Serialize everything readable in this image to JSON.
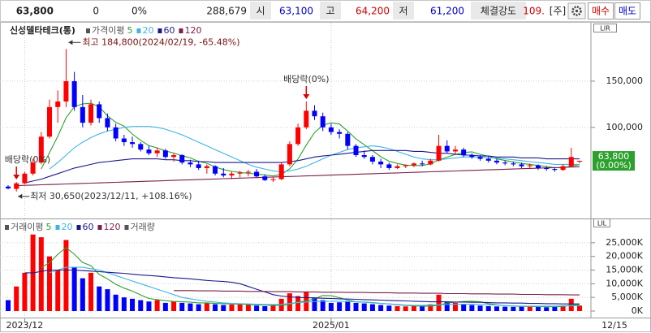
{
  "header": {
    "price": "63,800",
    "change": "0",
    "change_pct": "0%",
    "volume": "288,679",
    "open_label": "시",
    "open": "63,100",
    "high_label": "고",
    "high": "64,200",
    "low_label": "저",
    "low": "61,200",
    "strength_label": "체결강도",
    "strength": "109.",
    "market": "[주]",
    "buy": "매수",
    "sell": "매도"
  },
  "chart_data": [
    {
      "type": "candlestick",
      "title": "신성델타테크(통)",
      "legend_title": "가격이평",
      "scale_mode": "LIR",
      "up_color": "#ff0000",
      "down_color": "#0000ff",
      "open": [
        36000,
        33500,
        39500,
        50000,
        62000,
        90000,
        122000,
        128000,
        150000,
        122000,
        105000,
        125000,
        110000,
        100000,
        88000,
        84000,
        82000,
        76000,
        72000,
        75000,
        68000,
        70000,
        62000,
        60000,
        56000,
        58000,
        50000,
        48000,
        50000,
        51000,
        52000,
        47000,
        43000,
        44000,
        60000,
        82000,
        100000,
        118000,
        112000,
        100000,
        95000,
        93000,
        80000,
        70000,
        68000,
        63000,
        60000,
        56000,
        58000,
        59000,
        61000,
        60000,
        64000,
        80000,
        74000,
        76000,
        70000,
        68000,
        66000,
        64000,
        62000,
        61000,
        60000,
        58000,
        59000,
        56000,
        55000,
        54000,
        58000,
        63100
      ],
      "high": [
        37500,
        41000,
        52000,
        66000,
        95000,
        130000,
        140000,
        184800,
        160000,
        135000,
        130000,
        128000,
        115000,
        104000,
        92000,
        90000,
        84000,
        80000,
        78000,
        77000,
        72000,
        71000,
        65000,
        64000,
        60000,
        59000,
        56000,
        52000,
        53000,
        54000,
        55000,
        49000,
        46000,
        62000,
        85000,
        104000,
        128000,
        124000,
        116000,
        104000,
        98000,
        95000,
        82000,
        75000,
        70000,
        66000,
        62000,
        60000,
        60000,
        62000,
        64000,
        66000,
        92000,
        86000,
        80000,
        78000,
        72000,
        70000,
        68000,
        66000,
        64000,
        63000,
        62000,
        61000,
        60000,
        58000,
        57000,
        60000,
        78000,
        64200
      ],
      "low": [
        33000,
        30650,
        38500,
        48000,
        60000,
        88000,
        105000,
        122000,
        118000,
        100000,
        102000,
        105000,
        96000,
        85000,
        80000,
        78000,
        74000,
        70000,
        68000,
        66000,
        63000,
        60000,
        57000,
        54000,
        50000,
        48000,
        46000,
        44000,
        46000,
        47000,
        46000,
        42000,
        41000,
        43000,
        58000,
        80000,
        98000,
        108000,
        96000,
        92000,
        88000,
        76000,
        68000,
        66000,
        60000,
        56000,
        54000,
        55000,
        56000,
        57000,
        58000,
        59000,
        63000,
        72000,
        70000,
        68000,
        66000,
        64000,
        62000,
        60000,
        59000,
        58000,
        56000,
        55000,
        54000,
        53000,
        52000,
        53000,
        57000,
        61200
      ],
      "close": [
        34000,
        39500,
        50000,
        62000,
        90000,
        122000,
        128000,
        150000,
        122000,
        105000,
        125000,
        110000,
        100000,
        88000,
        84000,
        82000,
        76000,
        72000,
        75000,
        68000,
        70000,
        62000,
        60000,
        56000,
        58000,
        50000,
        48000,
        50000,
        51000,
        52000,
        47000,
        43000,
        44000,
        60000,
        82000,
        100000,
        118000,
        112000,
        100000,
        95000,
        93000,
        80000,
        70000,
        68000,
        63000,
        60000,
        56000,
        58000,
        59000,
        61000,
        60000,
        64000,
        80000,
        74000,
        76000,
        70000,
        68000,
        66000,
        64000,
        62000,
        61000,
        60000,
        58000,
        59000,
        56000,
        55000,
        54000,
        58000,
        68000,
        63800
      ],
      "series": [
        {
          "name": "5",
          "color": "#2ca02c",
          "values": [
            null,
            null,
            null,
            null,
            55100,
            72700,
            90400,
            110400,
            122400,
            125400,
            126000,
            122400,
            112400,
            105600,
            101400,
            92800,
            86000,
            80400,
            77800,
            74600,
            72200,
            69400,
            67000,
            63200,
            61200,
            57200,
            54400,
            52400,
            51400,
            50200,
            49600,
            48600,
            47400,
            49200,
            55200,
            65800,
            80800,
            94400,
            102400,
            105000,
            103600,
            96000,
            87600,
            81200,
            74800,
            68200,
            63400,
            61000,
            59200,
            58800,
            58800,
            60400,
            64800,
            67800,
            70800,
            72800,
            73600,
            70800,
            68800,
            66000,
            64200,
            62600,
            61000,
            60000,
            58800,
            57600,
            56400,
            56400,
            58200,
            59760
          ]
        },
        {
          "name": "20",
          "color": "#3fb4e6",
          "values": [
            null,
            null,
            null,
            null,
            null,
            55000,
            62000,
            70000,
            78000,
            84000,
            89000,
            93000,
            96000,
            98000,
            100000,
            101000,
            101000,
            101000,
            100000,
            98000,
            95000,
            92000,
            88000,
            84000,
            80000,
            76000,
            72000,
            68000,
            64000,
            60000,
            57000,
            55000,
            53000,
            52000,
            53000,
            55000,
            58000,
            62000,
            66000,
            70000,
            73000,
            76000,
            78000,
            79000,
            80000,
            79000,
            77000,
            74000,
            71000,
            68000,
            66000,
            65000,
            65000,
            66000,
            67000,
            68000,
            68000,
            68000,
            67000,
            67000,
            66000,
            65000,
            64000,
            63000,
            62000,
            61000,
            60000,
            60000,
            60000,
            60000
          ]
        },
        {
          "name": "60",
          "color": "#1a1a8c",
          "values": [
            null,
            null,
            40000,
            42000,
            44000,
            47000,
            50000,
            53000,
            56000,
            58000,
            60000,
            62000,
            63000,
            64000,
            65000,
            66000,
            66000,
            66000,
            66000,
            65000,
            65000,
            64000,
            64000,
            63000,
            63000,
            62000,
            62000,
            62000,
            62000,
            62000,
            62000,
            62000,
            62000,
            62000,
            63000,
            64000,
            66000,
            68000,
            69000,
            70000,
            71000,
            72000,
            73000,
            74000,
            75000,
            75000,
            75000,
            75000,
            75000,
            74000,
            74000,
            73000,
            72000,
            72000,
            71000,
            70000,
            70000,
            69000,
            69000,
            68000,
            68000,
            68000,
            67000,
            67000,
            67000,
            66000,
            66000,
            66000,
            66000,
            66000
          ]
        },
        {
          "name": "120",
          "color": "#7a1f4a",
          "values": [
            null,
            37000,
            37300,
            37600,
            37900,
            38200,
            38500,
            38800,
            39100,
            39400,
            39700,
            40000,
            40300,
            40600,
            40900,
            41200,
            41500,
            41800,
            42100,
            42400,
            42700,
            43000,
            43300,
            43600,
            43900,
            44200,
            44500,
            44800,
            45100,
            45400,
            45700,
            46000,
            46300,
            46600,
            46900,
            47200,
            47500,
            47800,
            48100,
            48400,
            48700,
            49000,
            49300,
            49600,
            49900,
            50200,
            50500,
            50800,
            51100,
            51400,
            51700,
            52000,
            52300,
            52600,
            52900,
            53200,
            53500,
            53800,
            54100,
            54400,
            54700,
            55000,
            55300,
            55600,
            55900,
            56200,
            56500,
            56800,
            57100,
            57400
          ]
        }
      ],
      "ylim": [
        5000,
        200000
      ],
      "yticks": [
        {
          "value": 100000,
          "label": "100,000"
        },
        {
          "value": 150000,
          "label": "150,000"
        }
      ],
      "grid": true,
      "annotations": [
        {
          "text": "최고 184,800(2024/02/19, -65.48%)",
          "index": 7,
          "kind": "max"
        },
        {
          "text": "최저 30,650(2023/12/11, +108.16%)",
          "index": 1,
          "kind": "min"
        },
        {
          "text": "배당락(0%)",
          "index": 1,
          "kind": "event"
        },
        {
          "text": "배당락(0%)",
          "index": 36,
          "kind": "event"
        }
      ],
      "last": {
        "value": 63800,
        "label": "63,800",
        "change": "(0.00%)",
        "color": "#2ca02c"
      }
    },
    {
      "type": "volume",
      "title": "거래량",
      "legend_title": "거래이평",
      "scale_mode": "LIL",
      "categories": [
        null,
        null,
        "2023/12",
        null,
        null,
        null,
        null,
        null,
        null,
        null,
        null,
        null,
        null,
        null,
        null,
        null,
        null,
        null,
        null,
        null,
        null,
        null,
        null,
        null,
        null,
        null,
        null,
        null,
        null,
        null,
        null,
        null,
        null,
        null,
        null,
        null,
        null,
        null,
        null,
        "2025/01",
        null,
        null,
        null,
        null,
        null,
        null,
        null,
        null,
        null,
        null,
        null,
        null,
        null,
        null,
        null,
        null,
        null,
        null,
        null,
        null,
        null,
        null,
        null,
        null,
        null,
        null,
        null,
        null,
        null,
        null
      ],
      "last_label": "12/15",
      "values": [
        4000,
        9000,
        14000,
        28000,
        27000,
        20000,
        15000,
        26000,
        16000,
        12000,
        14000,
        9000,
        8000,
        6000,
        5000,
        4500,
        4000,
        3500,
        4000,
        3000,
        3500,
        3000,
        2800,
        2500,
        3000,
        2500,
        2200,
        2400,
        2600,
        2300,
        2000,
        1800,
        2000,
        4500,
        6500,
        5500,
        7000,
        5000,
        4000,
        3000,
        3200,
        3500,
        3000,
        2800,
        2500,
        2200,
        2000,
        1800,
        1700,
        1800,
        1900,
        2500,
        6000,
        3500,
        3000,
        2500,
        2200,
        2000,
        1800,
        1700,
        1600,
        1500,
        1700,
        1600,
        1500,
        1400,
        1500,
        2000,
        4500,
        2000
      ],
      "series": [
        {
          "name": "5",
          "color": "#2ca02c",
          "values": [
            null,
            null,
            null,
            null,
            16000,
            17600,
            20800,
            23200,
            20800,
            17800,
            16600,
            13400,
            11800,
            9800,
            8400,
            7300,
            5900,
            4600,
            4200,
            3800,
            3500,
            3400,
            3300,
            3000,
            3000,
            2800,
            2700,
            2600,
            2500,
            2400,
            2300,
            2200,
            2100,
            2100,
            2400,
            3400,
            3700,
            4500,
            5700,
            5600,
            4900,
            4000,
            3400,
            3300,
            3100,
            2800,
            2600,
            2300,
            2100,
            1900,
            1800,
            1800,
            2100,
            3000,
            3200,
            3500,
            3600,
            3400,
            2700,
            2300,
            2000,
            1800,
            1700,
            1700,
            1600,
            1600,
            1600,
            1700,
            2200,
            2300
          ]
        },
        {
          "name": "20",
          "color": "#3fb4e6",
          "values": [
            null,
            null,
            null,
            null,
            null,
            14000,
            15000,
            16000,
            16000,
            16000,
            15500,
            15000,
            14000,
            13000,
            12000,
            11000,
            10000,
            9000,
            8000,
            7000,
            6000,
            5000,
            4500,
            4000,
            3600,
            3300,
            3000,
            2800,
            2700,
            2600,
            2500,
            2400,
            2400,
            2500,
            2800,
            3100,
            3300,
            3500,
            3600,
            3600,
            3600,
            3500,
            3400,
            3200,
            3000,
            2800,
            2600,
            2400,
            2200,
            2100,
            2100,
            2200,
            2300,
            2400,
            2500,
            2500,
            2500,
            2400,
            2300,
            2200,
            2000,
            1900,
            1800,
            1800,
            1800,
            1800,
            1800,
            1900,
            1900,
            2000
          ]
        },
        {
          "name": "60",
          "color": "#1a1a8c",
          "values": [
            null,
            null,
            14000,
            14000,
            14500,
            15000,
            15000,
            15000,
            15000,
            14800,
            14600,
            14400,
            14200,
            14000,
            13800,
            13500,
            13200,
            13000,
            12800,
            12500,
            12200,
            12000,
            11800,
            11500,
            11200,
            11000,
            10800,
            10500,
            10000,
            9000,
            8000,
            7000,
            6000,
            5500,
            5200,
            5000,
            4900,
            4800,
            4700,
            4600,
            4500,
            4400,
            4300,
            4200,
            4100,
            4000,
            3900,
            3800,
            3700,
            3600,
            3500,
            3400,
            3400,
            3400,
            3300,
            3300,
            3200,
            3200,
            3100,
            3000,
            3000,
            2900,
            2900,
            2800,
            2800,
            2700,
            2700,
            2600,
            2600,
            2600
          ]
        },
        {
          "name": "120",
          "color": "#7a1f4a",
          "values": [
            null,
            null,
            null,
            null,
            null,
            null,
            null,
            null,
            null,
            null,
            null,
            null,
            null,
            null,
            null,
            null,
            null,
            null,
            null,
            null,
            7500,
            7500,
            7500,
            7400,
            7400,
            7400,
            7300,
            7300,
            7300,
            7200,
            7200,
            7200,
            7100,
            7100,
            7100,
            7000,
            7000,
            7000,
            6900,
            6900,
            6900,
            6800,
            6800,
            6800,
            6700,
            6700,
            6700,
            6600,
            6600,
            6600,
            6500,
            6500,
            6500,
            6400,
            6400,
            6400,
            6300,
            6300,
            6300,
            6200,
            6200,
            6200,
            6100,
            6100,
            6100,
            6000,
            6000,
            6000,
            5900,
            5900
          ]
        }
      ],
      "ylim": [
        0,
        30000
      ],
      "yticks": [
        {
          "value": 0,
          "label": "0K"
        },
        {
          "value": 5000,
          "label": "5,000K"
        },
        {
          "value": 10000,
          "label": "10,000K"
        },
        {
          "value": 15000,
          "label": "15,000K"
        },
        {
          "value": 20000,
          "label": "20,000K"
        },
        {
          "value": 25000,
          "label": "25,000K"
        }
      ],
      "grid": true
    }
  ]
}
